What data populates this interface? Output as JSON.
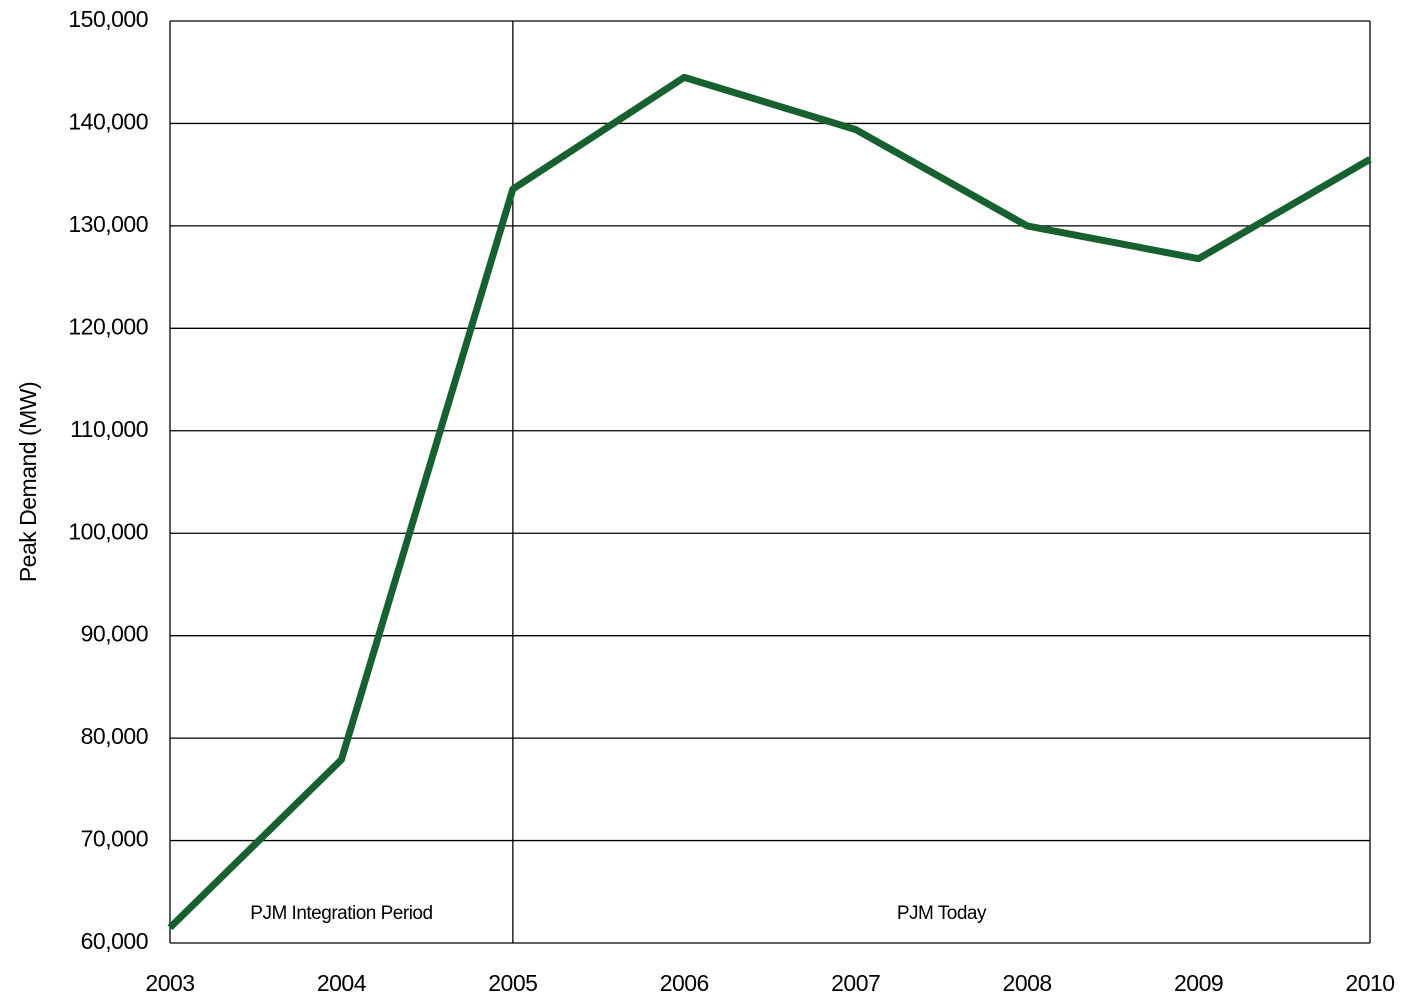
{
  "chart_data": {
    "type": "line",
    "y_label": "Peak Demand (MW)",
    "x": [
      2003,
      2004,
      2005,
      2006,
      2007,
      2008,
      2009,
      2010
    ],
    "series": [
      {
        "name": "Peak Demand",
        "color": "#176130",
        "values": [
          61500,
          77900,
          133600,
          144500,
          139400,
          130000,
          126800,
          136500
        ]
      }
    ],
    "xlim": [
      2003,
      2010
    ],
    "xticks": [
      2003,
      2004,
      2005,
      2006,
      2007,
      2008,
      2009,
      2010
    ],
    "ylim": [
      60000,
      150000
    ],
    "yticks": [
      {
        "value": 60000,
        "label": "60,000"
      },
      {
        "value": 70000,
        "label": "70,000"
      },
      {
        "value": 80000,
        "label": "80,000"
      },
      {
        "value": 90000,
        "label": "90,000"
      },
      {
        "value": 100000,
        "label": "100,000"
      },
      {
        "value": 110000,
        "label": "110,000"
      },
      {
        "value": 120000,
        "label": "120,000"
      },
      {
        "value": 130000,
        "label": "130,000"
      },
      {
        "value": 140000,
        "label": "140,000"
      },
      {
        "value": 150000,
        "label": "150,000"
      }
    ],
    "grid": true,
    "annotations": [
      "PJM Integration Period",
      "PJM Today"
    ]
  }
}
